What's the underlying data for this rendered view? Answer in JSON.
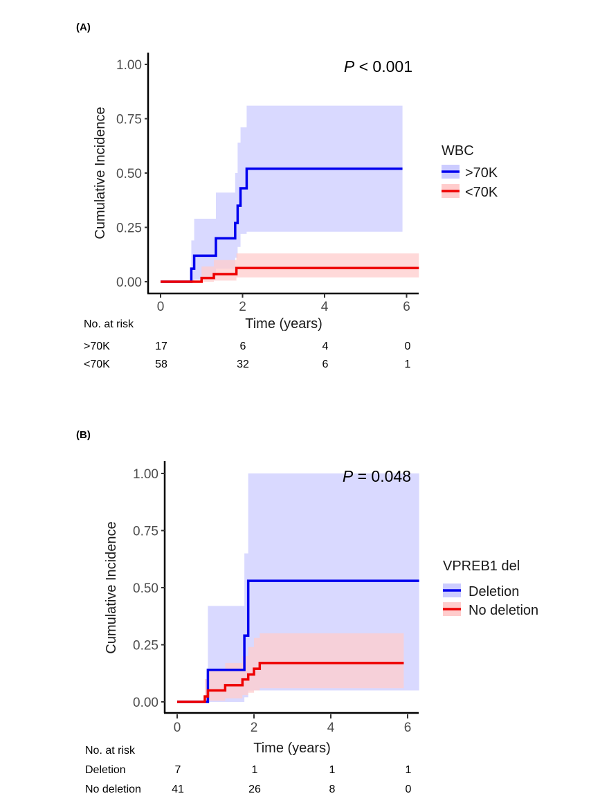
{
  "chart_data": [
    {
      "type": "line",
      "panel_label": "(A)",
      "p_symbol": "P",
      "p_rest": " < 0.001",
      "xlabel": "Time (years)",
      "ylabel": "Cumulative Incidence",
      "xlim": [
        0,
        6.3
      ],
      "ylim": [
        0,
        1
      ],
      "xticks": [
        "0",
        "2",
        "4",
        "6"
      ],
      "yticks": [
        "0.00",
        "0.25",
        "0.50",
        "0.75",
        "1.00"
      ],
      "legend_title": "WBC",
      "series": [
        {
          "name": ">70K",
          "color": "#0000ee",
          "band_color": "#ccccff",
          "x": [
            0,
            0.7,
            0.75,
            0.82,
            1.35,
            1.82,
            1.88,
            1.95,
            2.1,
            5.9
          ],
          "y": [
            0,
            0,
            0.06,
            0.12,
            0.2,
            0.27,
            0.35,
            0.43,
            0.52,
            0.52
          ],
          "lower": [
            0,
            0,
            0,
            0.01,
            0.06,
            0.11,
            0.16,
            0.22,
            0.23,
            0.23
          ],
          "upper": [
            0,
            0,
            0.19,
            0.29,
            0.41,
            0.5,
            0.64,
            0.71,
            0.81,
            0.81
          ]
        },
        {
          "name": "<70K",
          "color": "#ee0000",
          "band_color": "#ffcccc",
          "x": [
            0,
            0.8,
            1.0,
            1.3,
            1.8,
            1.85,
            6.3
          ],
          "y": [
            0,
            0,
            0.017,
            0.035,
            0.035,
            0.063,
            0.063
          ],
          "lower": [
            0,
            0,
            0,
            0.005,
            0.005,
            0.02,
            0.02
          ],
          "upper": [
            0,
            0,
            0.07,
            0.1,
            0.1,
            0.13,
            0.13
          ]
        }
      ],
      "risk_table": {
        "title": "No. at risk",
        "rows": [
          {
            "label": ">70K",
            "values": [
              "17",
              "6",
              "4",
              "0"
            ]
          },
          {
            "label": "<70K",
            "values": [
              "58",
              "32",
              "6",
              "1"
            ]
          }
        ]
      }
    },
    {
      "type": "line",
      "panel_label": "(B)",
      "p_symbol": "P",
      "p_rest": " = 0.048",
      "xlabel": "Time (years)",
      "ylabel": "Cumulative Incidence",
      "xlim": [
        0,
        6.3
      ],
      "ylim": [
        0,
        1
      ],
      "xticks": [
        "0",
        "2",
        "4",
        "6"
      ],
      "yticks": [
        "0.00",
        "0.25",
        "0.50",
        "0.75",
        "1.00"
      ],
      "legend_title": "VPREB1 del",
      "series": [
        {
          "name": "Deletion",
          "color": "#0000ee",
          "band_color": "#ccccff",
          "x": [
            0,
            0.75,
            0.8,
            1.65,
            1.75,
            1.85,
            6.3
          ],
          "y": [
            0,
            0,
            0.14,
            0.14,
            0.29,
            0.53,
            0.53
          ],
          "lower": [
            0,
            0,
            0,
            0,
            0.02,
            0.05,
            0.05
          ],
          "upper": [
            0,
            0,
            0.42,
            0.42,
            0.65,
            1.0,
            1.0
          ]
        },
        {
          "name": "No deletion",
          "color": "#ee0000",
          "band_color": "#ffcccc",
          "x": [
            0,
            0.65,
            0.72,
            0.8,
            1.25,
            1.7,
            1.85,
            2.0,
            2.15,
            5.9
          ],
          "y": [
            0,
            0,
            0.024,
            0.05,
            0.073,
            0.098,
            0.12,
            0.145,
            0.17,
            0.17
          ],
          "lower": [
            0,
            0,
            0,
            0.005,
            0.015,
            0.03,
            0.04,
            0.05,
            0.06,
            0.06
          ],
          "upper": [
            0,
            0,
            0.1,
            0.14,
            0.17,
            0.2,
            0.24,
            0.28,
            0.3,
            0.3
          ]
        }
      ],
      "risk_table": {
        "title": "No. at risk",
        "rows": [
          {
            "label": "Deletion",
            "values": [
              "7",
              "1",
              "1",
              "1"
            ]
          },
          {
            "label": "No deletion",
            "values": [
              "41",
              "26",
              "8",
              "0"
            ]
          }
        ]
      }
    }
  ]
}
